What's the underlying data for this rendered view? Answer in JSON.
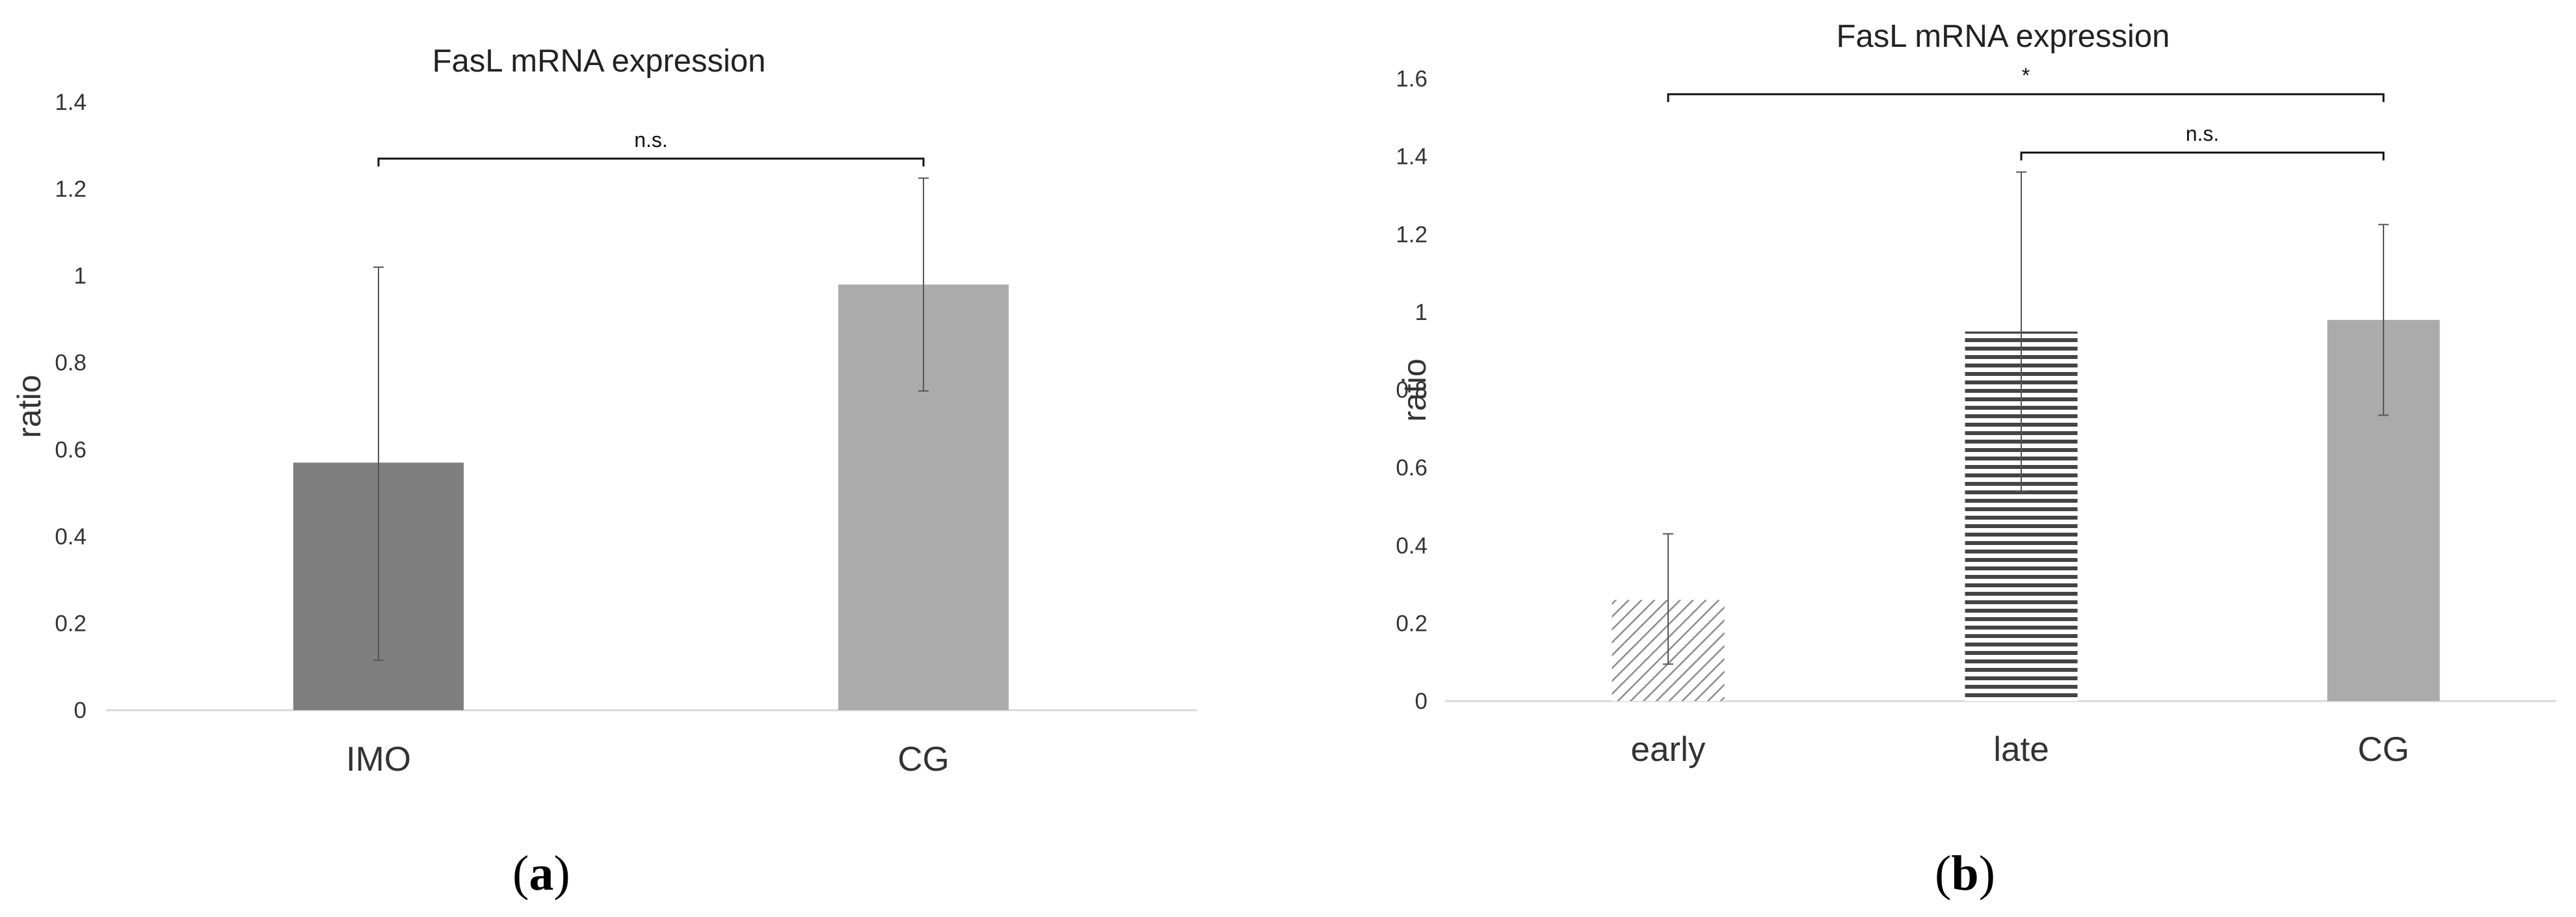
{
  "colors": {
    "bar_dark": "#7f7f7f",
    "bar_light": "#ababab",
    "stripe": "#444444",
    "hatch": "#8c8c8c",
    "text": "#333333",
    "axis": "#d9d9d9",
    "error": "#555555"
  },
  "chart_data": [
    {
      "type": "bar",
      "panel": "a",
      "title": "FasL mRNA expression",
      "xlabel": "",
      "ylabel": "ratio",
      "categories": [
        "IMO",
        "CG"
      ],
      "values": [
        0.57,
        0.98
      ],
      "error_low": [
        0.115,
        0.735
      ],
      "error_high": [
        1.02,
        1.225
      ],
      "fills": [
        "dark",
        "light"
      ],
      "ylim": [
        0,
        1.4
      ],
      "yticks": [
        "0",
        "0.2",
        "0.4",
        "0.6",
        "0.8",
        "1",
        "1.2",
        "1.4"
      ],
      "grid": false,
      "significance": [
        {
          "from": 0,
          "to": 1,
          "y": 1.27,
          "label": "n.s."
        }
      ]
    },
    {
      "type": "bar",
      "panel": "b",
      "title": "FasL mRNA expression",
      "xlabel": "",
      "ylabel": "ratio",
      "categories": [
        "early",
        "late",
        "CG"
      ],
      "values": [
        0.26,
        0.95,
        0.98
      ],
      "error_low": [
        0.095,
        0.54,
        0.735
      ],
      "error_high": [
        0.43,
        1.36,
        1.225
      ],
      "fills": [
        "diagonal-hatch",
        "horizontal-stripes",
        "light"
      ],
      "ylim": [
        0,
        1.6
      ],
      "yticks": [
        "0",
        "0.2",
        "0.4",
        "0.6",
        "0.8",
        "1",
        "1.2",
        "1.4",
        "1.6"
      ],
      "grid": false,
      "significance": [
        {
          "from": 0,
          "to": 2,
          "y": 1.56,
          "label": "*"
        },
        {
          "from": 1,
          "to": 2,
          "y": 1.41,
          "label": "n.s."
        }
      ]
    }
  ],
  "panel_labels": {
    "a": "a",
    "b": "b"
  }
}
